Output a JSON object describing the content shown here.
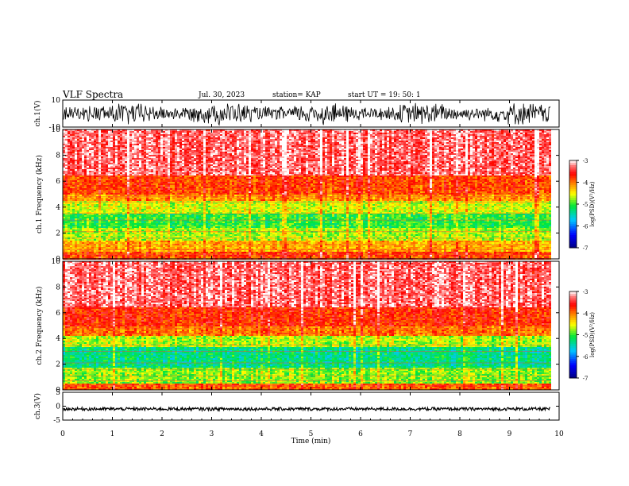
{
  "header": {
    "title": "VLF Spectra",
    "date": "Jul. 30, 2023",
    "station": "station= KAP",
    "start": "start  UT =   19: 50: 1"
  },
  "chart_data": [
    {
      "type": "line",
      "panel": "ch1-waveform",
      "ylabel": "ch.1(V)",
      "ylim": [
        -10,
        10
      ],
      "yticks": [
        "10",
        "-10"
      ],
      "xlim": [
        0,
        10
      ],
      "data_end_min": 9.83,
      "color": "#000000"
    },
    {
      "type": "heatmap",
      "panel": "ch1-spectrogram",
      "ylabel": "ch.1 Frequency (kHz)",
      "ylim": [
        0,
        10
      ],
      "yticks": [
        "0",
        "2",
        "4",
        "6",
        "8",
        "10"
      ],
      "xlim": [
        0,
        10
      ],
      "data_end_min": 9.83,
      "bands_khz": [
        {
          "from": 0.0,
          "to": 0.6,
          "level": -3.8
        },
        {
          "from": 0.6,
          "to": 1.5,
          "level": -4.2
        },
        {
          "from": 1.5,
          "to": 2.5,
          "level": -4.7
        },
        {
          "from": 2.5,
          "to": 3.5,
          "level": -5.0
        },
        {
          "from": 3.5,
          "to": 4.5,
          "level": -4.6
        },
        {
          "from": 4.5,
          "to": 5.0,
          "level": -4.1
        },
        {
          "from": 5.0,
          "to": 6.5,
          "level": -3.8
        },
        {
          "from": 6.5,
          "to": 10.0,
          "level": -3.3
        }
      ],
      "colorbar": {
        "label": "log(PSD)(V²/Hz)",
        "range": [
          -7,
          -3
        ],
        "ticks": [
          "-3",
          "-4",
          "-5",
          "-6",
          "-7"
        ]
      }
    },
    {
      "type": "heatmap",
      "panel": "ch2-spectrogram",
      "ylabel": "ch.2 Frequency (kHz)",
      "ylim": [
        0,
        10
      ],
      "yticks": [
        "0",
        "2",
        "4",
        "6",
        "8",
        "10"
      ],
      "xlim": [
        0,
        10
      ],
      "data_end_min": 9.83,
      "bands_khz": [
        {
          "from": 0.0,
          "to": 0.6,
          "level": -3.9
        },
        {
          "from": 0.6,
          "to": 1.8,
          "level": -4.8
        },
        {
          "from": 1.8,
          "to": 3.4,
          "level": -5.3
        },
        {
          "from": 3.4,
          "to": 4.2,
          "level": -4.7
        },
        {
          "from": 4.2,
          "to": 5.0,
          "level": -4.0
        },
        {
          "from": 5.0,
          "to": 6.5,
          "level": -3.7
        },
        {
          "from": 6.5,
          "to": 10.0,
          "level": -3.3
        }
      ],
      "colorbar": {
        "label": "log(PSD)(V²/Hz)",
        "range": [
          -7,
          -3
        ],
        "ticks": [
          "-3",
          "-4",
          "-5",
          "-6",
          "-7"
        ]
      }
    },
    {
      "type": "line",
      "panel": "ch3-waveform",
      "ylabel": "ch.3(V)",
      "ylim": [
        -5,
        5
      ],
      "yticks": [
        "5",
        "0",
        "-5"
      ],
      "xlim": [
        0,
        10
      ],
      "data_end_min": 9.83,
      "level": -1,
      "color": "#000000"
    }
  ],
  "xaxis": {
    "label": "Time (min)",
    "ticks": [
      "0",
      "1",
      "2",
      "3",
      "4",
      "5",
      "6",
      "7",
      "8",
      "9",
      "10"
    ]
  }
}
